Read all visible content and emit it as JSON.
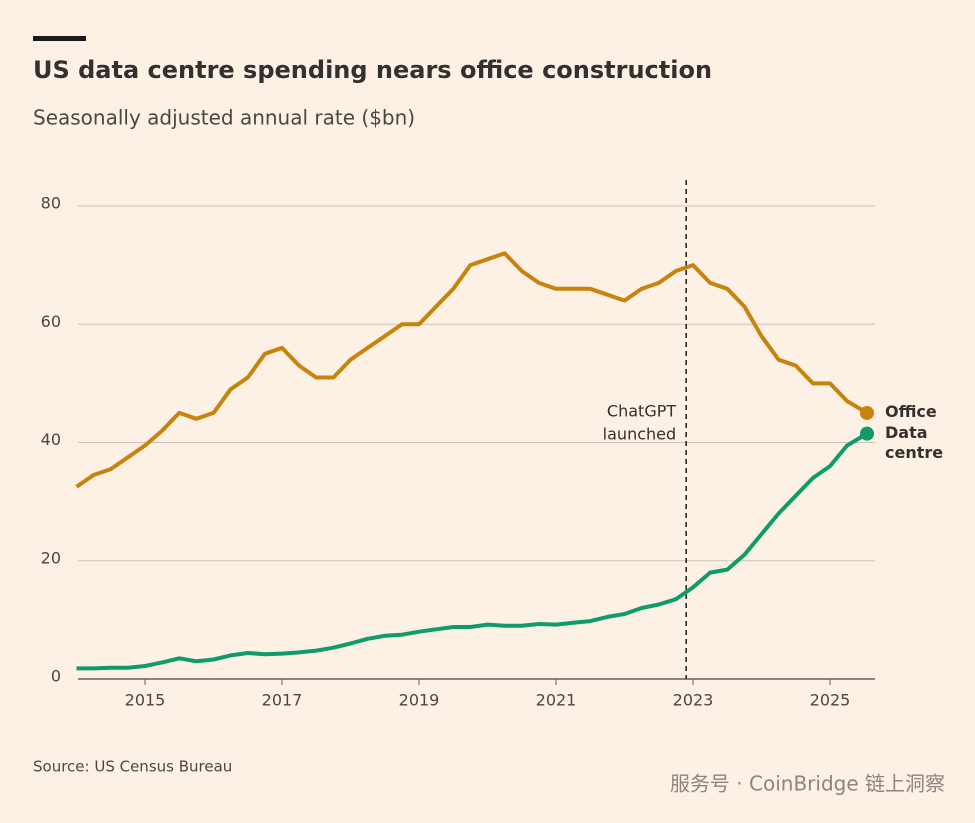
{
  "chart_data": {
    "type": "line",
    "title": "US data centre spending nears office construction",
    "subtitle": "Seasonally adjusted annual rate ($bn)",
    "source": "Source: US Census Bureau",
    "watermark": "服务号 · CoinBridge 链上洞察",
    "x": [
      2014,
      2014.25,
      2014.5,
      2014.75,
      2015,
      2015.25,
      2015.5,
      2015.75,
      2016,
      2016.25,
      2016.5,
      2016.75,
      2017,
      2017.25,
      2017.5,
      2017.75,
      2018,
      2018.25,
      2018.5,
      2018.75,
      2019,
      2019.25,
      2019.5,
      2019.75,
      2020,
      2020.25,
      2020.5,
      2020.75,
      2021,
      2021.25,
      2021.5,
      2021.75,
      2022,
      2022.25,
      2022.5,
      2022.75,
      2023,
      2023.25,
      2023.5,
      2023.75,
      2024,
      2024.25,
      2024.5,
      2024.75,
      2025,
      2025.25,
      2025.54
    ],
    "series": [
      {
        "name": "Office",
        "color": "#c8830c",
        "values": [
          32.5,
          34.5,
          35.5,
          37.5,
          39.5,
          42,
          45,
          44,
          45,
          49,
          51,
          55,
          56,
          53,
          51,
          51,
          54,
          56,
          58,
          60,
          60,
          63,
          66,
          70,
          71,
          72,
          69,
          67,
          66,
          66,
          66,
          65,
          64,
          66,
          67,
          69,
          70,
          67,
          66,
          63,
          58,
          54,
          53,
          50,
          50,
          47,
          45
        ]
      },
      {
        "name": "Data centre",
        "color": "#0f9b6a",
        "values": [
          1.8,
          1.8,
          1.9,
          1.9,
          2.2,
          2.8,
          3.5,
          3,
          3.3,
          4,
          4.4,
          4.2,
          4.3,
          4.5,
          4.8,
          5.3,
          6,
          6.8,
          7.3,
          7.5,
          8,
          8.4,
          8.8,
          8.8,
          9.2,
          9,
          9,
          9.3,
          9.2,
          9.5,
          9.8,
          10.5,
          11,
          12,
          12.6,
          13.5,
          15.5,
          18,
          18.5,
          21,
          24.5,
          28,
          31,
          34,
          36,
          39.5,
          41.5
        ]
      }
    ],
    "xlim": [
      2014,
      2025.7
    ],
    "xticks": [
      2015,
      2017,
      2019,
      2021,
      2023,
      2025
    ],
    "ylim": [
      0,
      80
    ],
    "yticks": [
      0,
      20,
      40,
      60,
      80
    ],
    "grid": true,
    "annotation": {
      "x": 2022.9,
      "lines": [
        "ChatGPT",
        "launched"
      ]
    }
  }
}
